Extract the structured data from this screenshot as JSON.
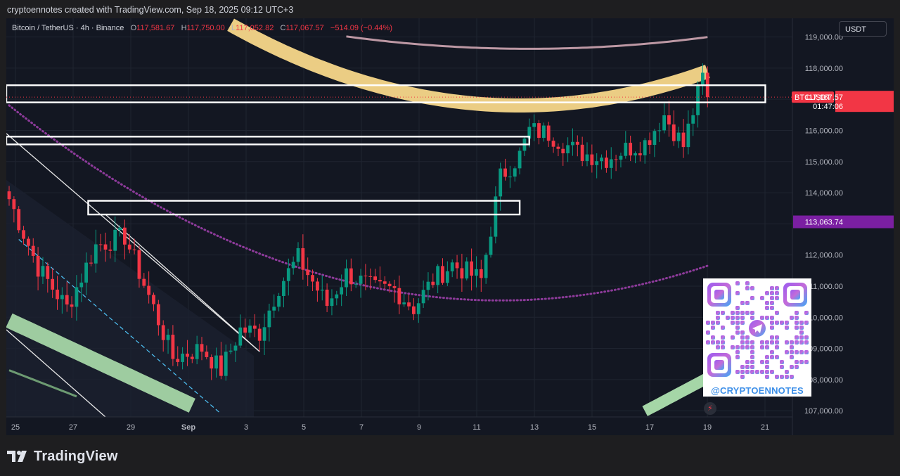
{
  "header": {
    "credit": "cryptoennotes created with TradingView.com, Sep 18, 2025 09:12 UTC+3"
  },
  "legend": {
    "symbol": "Bitcoin / TetherUS · 4h · Binance",
    "open_label": "O",
    "open": "117,581.67",
    "high_label": "H",
    "high": "117,750.00",
    "low_label": "L",
    "low": "117,052.82",
    "close_label": "C",
    "close": "117,067.57",
    "change": "−514.09 (−0.44%)"
  },
  "currency": "USDT",
  "brand": {
    "name": "TradingView",
    "logo_icon": "tradingview-logo-icon"
  },
  "qr": {
    "caption": "@CRYPTOENNOTES",
    "center_icon": "telegram-icon"
  },
  "colors": {
    "up": "#089981",
    "down": "#f23645",
    "background": "#131722",
    "upper_band": "#f7d78a",
    "lower_band": "#a5d6a7",
    "outer_band": "#e8b9c5",
    "mid_line": "#8e3b9b",
    "price_tag": "#f23645",
    "level_tag": "#7b1fa2"
  },
  "chart_data": {
    "type": "candlestick",
    "title": "Bitcoin / TetherUS · 4h · Binance",
    "y_range": [
      106800,
      119600
    ],
    "y_ticks": [
      "119,000.00",
      "118,000.00",
      "117,000.00",
      "116,000.00",
      "115,000.00",
      "114,000.00",
      "113,000.00",
      "112,000.00",
      "111,000.00",
      "110,000.00",
      "109,000.00",
      "108,000.00",
      "107,000.00"
    ],
    "x_ticks": [
      "25",
      "27",
      "29",
      "Sep",
      "3",
      "5",
      "7",
      "9",
      "11",
      "13",
      "15",
      "17",
      "19",
      "21"
    ],
    "last_price_tag": {
      "symbol": "BTCUSDT",
      "price": "117,067.57",
      "countdown": "01:47:06",
      "value": 117067.57
    },
    "level_tag": {
      "label": "113,063.74",
      "value": 113063.74
    },
    "candle_count": 146,
    "waypoints": [
      [
        0,
        113800
      ],
      [
        6,
        111600
      ],
      [
        12,
        110300
      ],
      [
        18,
        112300
      ],
      [
        24,
        112600
      ],
      [
        30,
        110300
      ],
      [
        34,
        108700
      ],
      [
        40,
        109000
      ],
      [
        44,
        108300
      ],
      [
        48,
        109600
      ],
      [
        52,
        109500
      ],
      [
        56,
        111000
      ],
      [
        60,
        111900
      ],
      [
        66,
        110400
      ],
      [
        70,
        111400
      ],
      [
        76,
        110900
      ],
      [
        80,
        110900
      ],
      [
        84,
        110300
      ],
      [
        88,
        111200
      ],
      [
        92,
        111700
      ],
      [
        98,
        111200
      ],
      [
        102,
        114500
      ],
      [
        106,
        115200
      ],
      [
        108,
        116000
      ],
      [
        112,
        115900
      ],
      [
        118,
        115300
      ],
      [
        124,
        115100
      ],
      [
        128,
        115400
      ],
      [
        132,
        115600
      ],
      [
        136,
        116500
      ],
      [
        140,
        115500
      ],
      [
        144,
        117700
      ],
      [
        145,
        117068
      ]
    ],
    "zones": [
      {
        "x": [
          0,
          157
        ],
        "y": [
          116900,
          117450
        ]
      },
      {
        "x": [
          0,
          108
        ],
        "y": [
          115550,
          115800
        ]
      },
      {
        "x": [
          17,
          106
        ],
        "y": [
          113300,
          113740
        ]
      }
    ]
  }
}
